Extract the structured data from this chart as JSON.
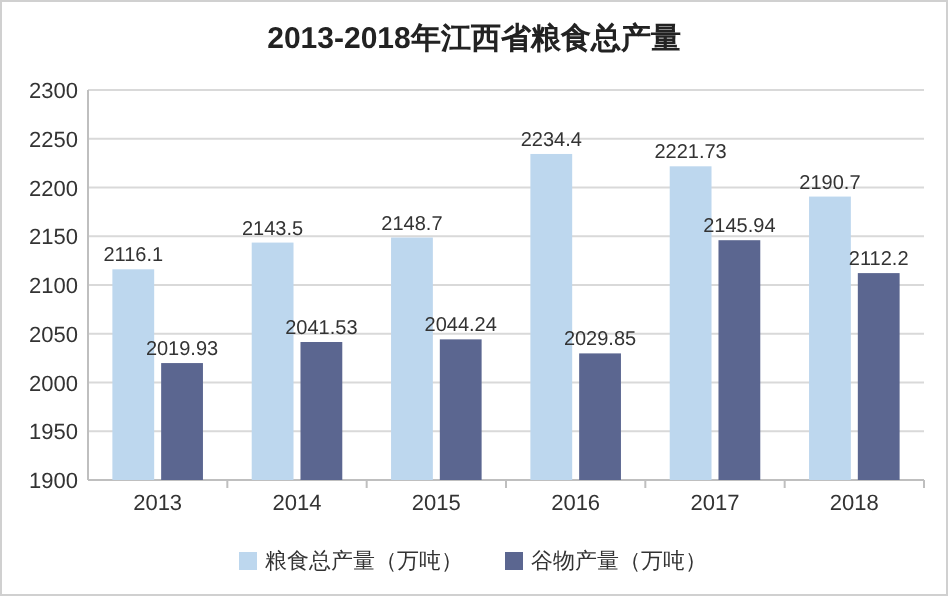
{
  "chart_data": {
    "type": "bar",
    "title": "2013-2018年江西省粮食总产量",
    "categories": [
      "2013",
      "2014",
      "2015",
      "2016",
      "2017",
      "2018"
    ],
    "series": [
      {
        "name": "粮食总产量（万吨）",
        "color": "#bdd7ee",
        "values": [
          2116.1,
          2143.5,
          2148.7,
          2234.4,
          2221.73,
          2190.7
        ]
      },
      {
        "name": "谷物产量（万吨）",
        "color": "#5b6690",
        "values": [
          2019.93,
          2041.53,
          2044.24,
          2029.85,
          2145.94,
          2112.2
        ]
      }
    ],
    "ylim": [
      1900,
      2300
    ],
    "yticks": [
      1900,
      1950,
      2000,
      2050,
      2100,
      2150,
      2200,
      2250,
      2300
    ],
    "grid": "y",
    "legend": "bottom",
    "data_labels": true
  }
}
